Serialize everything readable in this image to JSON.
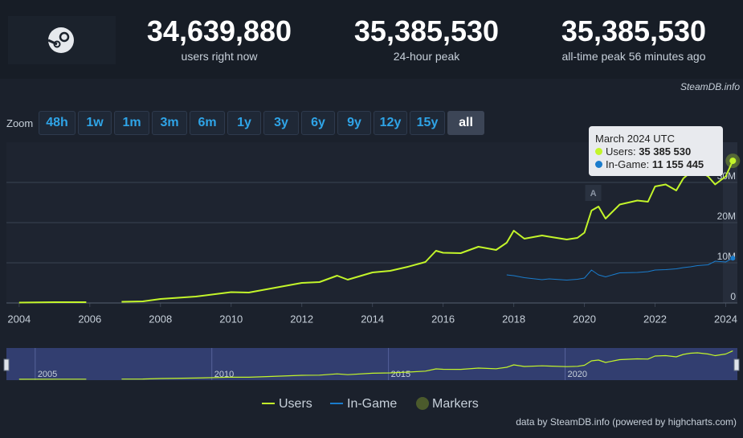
{
  "header": {
    "stats": [
      {
        "value": "34,639,880",
        "label": "users right now"
      },
      {
        "value": "35,385,530",
        "label": "24-hour peak"
      },
      {
        "value": "35,385,530",
        "label": "all-time peak 56 minutes ago"
      }
    ],
    "brand": "SteamDB.info"
  },
  "zoom": {
    "label": "Zoom",
    "buttons": [
      "48h",
      "1w",
      "1m",
      "3m",
      "6m",
      "1y",
      "3y",
      "6y",
      "9y",
      "12y",
      "15y",
      "all"
    ],
    "selected": "all"
  },
  "tooltip": {
    "title": "March 2024 UTC",
    "rows": [
      {
        "label": "Users:",
        "value": "35 385 530"
      },
      {
        "label": "In-Game:",
        "value": "11 155 445"
      }
    ]
  },
  "credit": "data by SteamDB.info (powered by highcharts.com)",
  "chart_data": {
    "type": "line",
    "x": [
      2004,
      2005,
      2005.9,
      2006.4,
      2006.9,
      2007.5,
      2008,
      2009,
      2010,
      2010.5,
      2011,
      2012,
      2012.5,
      2013,
      2013.3,
      2014,
      2014.5,
      2015,
      2015.5,
      2015.8,
      2016,
      2016.5,
      2017,
      2017.5,
      2017.8,
      2018,
      2018.3,
      2018.8,
      2019,
      2019.5,
      2019.8,
      2020,
      2020.2,
      2020.4,
      2020.6,
      2021,
      2021.5,
      2021.8,
      2022,
      2022.3,
      2022.6,
      2022.8,
      2023,
      2023.2,
      2023.5,
      2023.7,
      2024,
      2024.2
    ],
    "series": [
      {
        "name": "Users",
        "color": "#c3f52a",
        "values": [
          100000,
          200000,
          200000,
          null,
          300000,
          400000,
          1000000,
          1600000,
          2700000,
          2600000,
          3400000,
          5000000,
          5200000,
          6800000,
          5800000,
          7600000,
          8000000,
          9000000,
          10200000,
          13000000,
          12500000,
          12400000,
          14000000,
          13200000,
          15000000,
          18000000,
          16000000,
          16800000,
          16500000,
          15800000,
          16200000,
          17500000,
          23000000,
          24000000,
          21000000,
          24500000,
          25500000,
          25200000,
          29000000,
          29500000,
          28000000,
          31000000,
          32500000,
          33000000,
          31500000,
          29500000,
          31500000,
          35385530
        ]
      },
      {
        "name": "In-Game",
        "color": "#1a7ccc",
        "values": [
          null,
          null,
          null,
          null,
          null,
          null,
          null,
          null,
          null,
          null,
          null,
          null,
          null,
          null,
          null,
          null,
          null,
          null,
          null,
          null,
          null,
          null,
          null,
          null,
          7000000,
          6800000,
          6300000,
          5800000,
          6000000,
          5700000,
          5900000,
          6200000,
          8200000,
          7000000,
          6500000,
          7500000,
          7600000,
          7800000,
          8200000,
          8300000,
          8500000,
          8800000,
          9000000,
          9300000,
          9500000,
          10400000,
          10200000,
          11155445
        ]
      }
    ],
    "markers_legend": "Markers",
    "annotation": {
      "x": 2020.25,
      "label": "A"
    },
    "xlim": [
      2003.64,
      2024.33
    ],
    "xticks": [
      2004,
      2006,
      2008,
      2010,
      2012,
      2014,
      2016,
      2018,
      2020,
      2022,
      2024
    ],
    "ylim": [
      0,
      40000000
    ],
    "yticks": [
      0,
      {
        "value": 10000000,
        "label": "10M"
      },
      {
        "value": 20000000,
        "label": "20M"
      },
      {
        "value": 30000000,
        "label": "30M"
      }
    ],
    "grid": true,
    "legend": "bottom",
    "navigator": {
      "xticks": [
        2005,
        2010,
        2015,
        2020
      ]
    }
  }
}
